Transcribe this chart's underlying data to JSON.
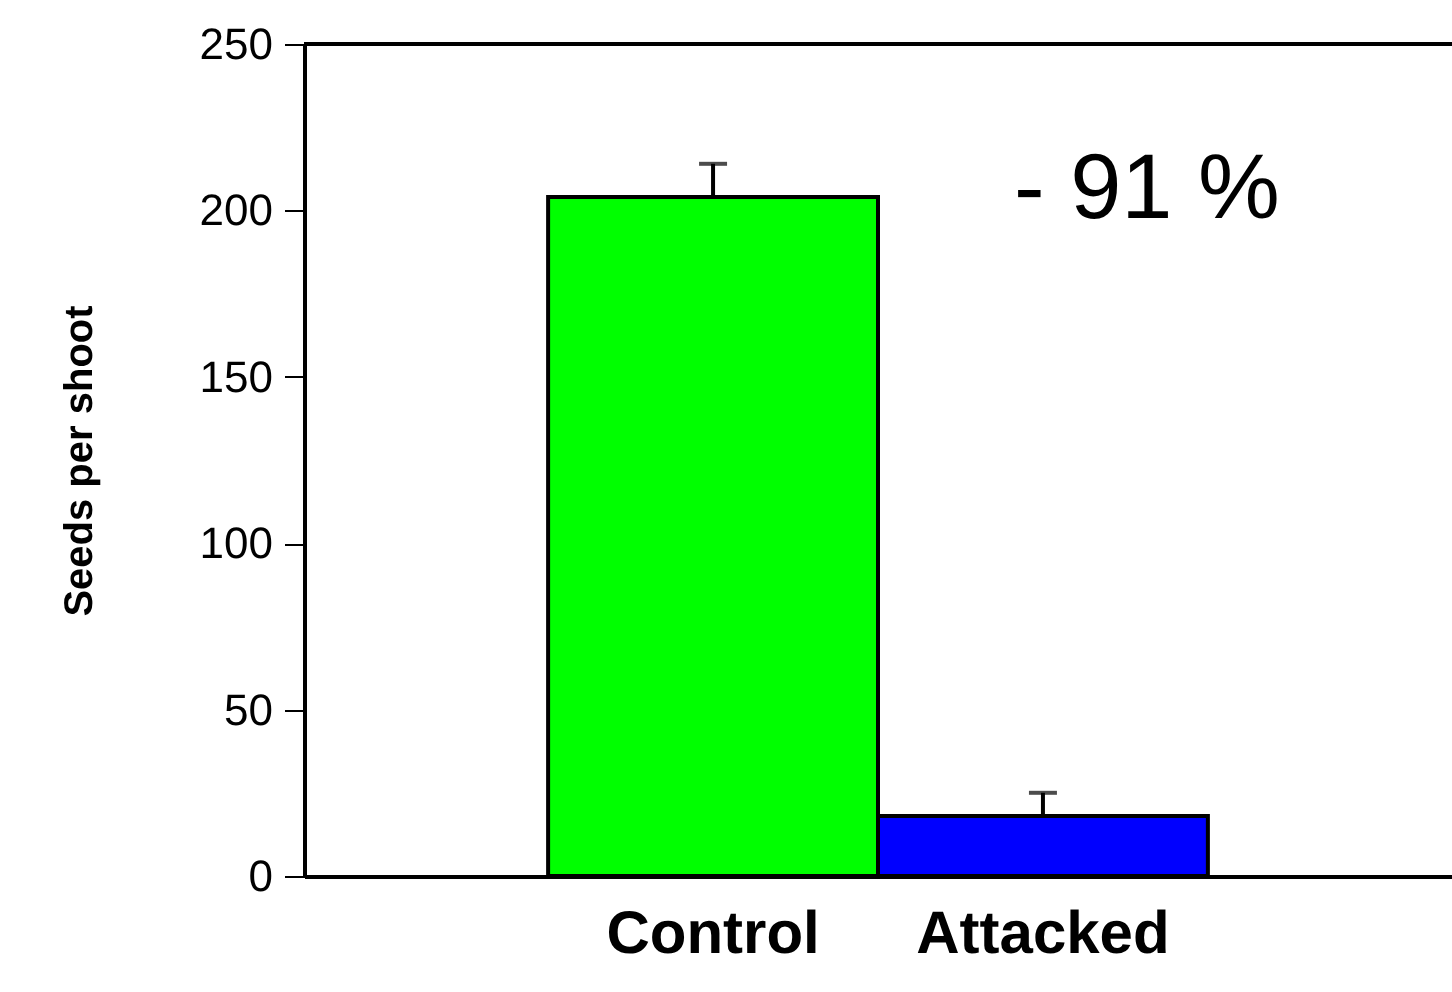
{
  "chart_data": {
    "type": "bar",
    "ylabel": "Seeds per shoot",
    "categories": [
      "Control",
      "Attacked"
    ],
    "values": [
      204,
      18
    ],
    "errors": [
      10,
      7
    ],
    "colors": [
      "#00ff00",
      "#0000ff"
    ],
    "ylim": [
      0,
      250
    ],
    "yticks": [
      0,
      50,
      100,
      150,
      200,
      250
    ],
    "grid": false,
    "annotations": [
      "- 91 %"
    ]
  }
}
